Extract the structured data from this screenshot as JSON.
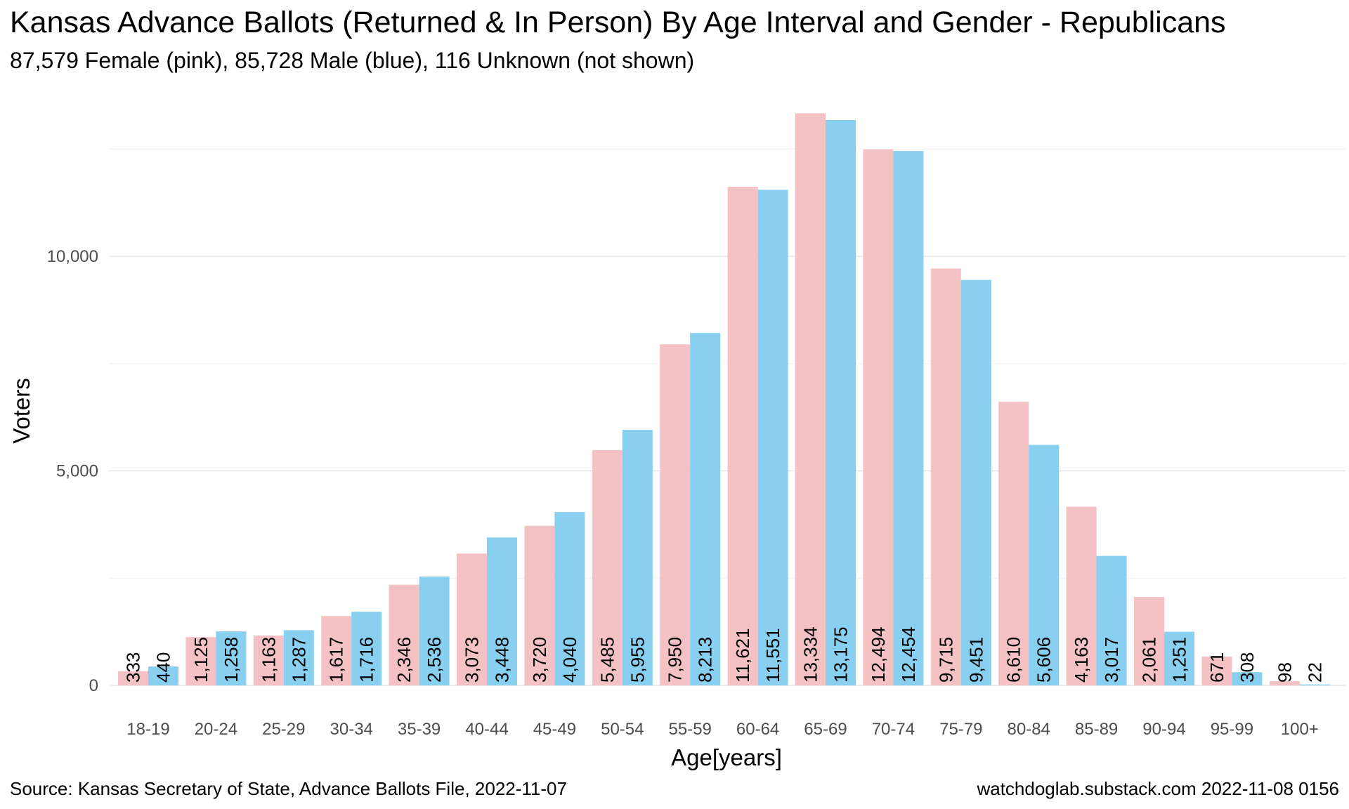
{
  "page": {
    "title": "Kansas Advance Ballots (Returned & In Person) By Age Interval and Gender - Republicans",
    "subtitle": "87,579 Female (pink),  85,728 Male (blue),  116 Unknown (not shown)",
    "source": "Source:  Kansas Secretary of State, Advance Ballots File,  2022-11-07",
    "credit": "watchdoglab.substack.com 2022-11-08 0156"
  },
  "colors": {
    "female": "#F4C2C4",
    "male": "#89CFEF"
  },
  "chart_data": {
    "type": "bar",
    "xlabel": "Age[years]",
    "ylabel": "Voters",
    "ylim": [
      0,
      13600
    ],
    "yticks": [
      0,
      5000,
      10000
    ],
    "ytick_labels": [
      "0",
      "5,000",
      "10,000"
    ],
    "grid": true,
    "categories": [
      "18-19",
      "20-24",
      "25-29",
      "30-34",
      "35-39",
      "40-44",
      "45-49",
      "50-54",
      "55-59",
      "60-64",
      "65-69",
      "70-74",
      "75-79",
      "80-84",
      "85-89",
      "90-94",
      "95-99",
      "100+"
    ],
    "series": [
      {
        "key": "female",
        "values": [
          333,
          1125,
          1163,
          1617,
          2346,
          3073,
          3720,
          5485,
          7950,
          11621,
          13334,
          12494,
          9715,
          6610,
          4163,
          2061,
          671,
          98
        ],
        "labels": [
          "333",
          "1,125",
          "1,163",
          "1,617",
          "2,346",
          "3,073",
          "3,720",
          "5,485",
          "7,950",
          "11,621",
          "13,334",
          "12,494",
          "9,715",
          "6,610",
          "4,163",
          "2,061",
          "671",
          "98"
        ]
      },
      {
        "key": "male",
        "values": [
          440,
          1258,
          1287,
          1716,
          2536,
          3448,
          4040,
          5955,
          8213,
          11551,
          13175,
          12454,
          9451,
          5606,
          3017,
          1251,
          308,
          22
        ],
        "labels": [
          "440",
          "1,258",
          "1,287",
          "1,716",
          "2,536",
          "3,448",
          "4,040",
          "5,955",
          "8,213",
          "11,551",
          "13,175",
          "12,454",
          "9,451",
          "5,606",
          "3,017",
          "1,251",
          "308",
          "22"
        ]
      }
    ]
  }
}
